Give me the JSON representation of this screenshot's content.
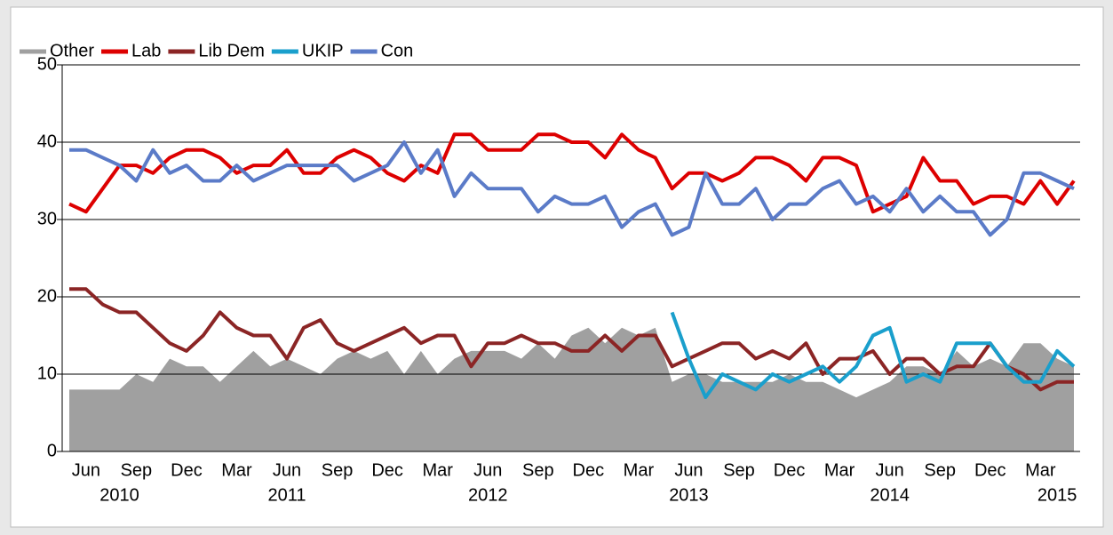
{
  "chart_data": {
    "type": "line",
    "categories": [
      null,
      "Jun",
      null,
      null,
      "Sep",
      null,
      null,
      "Dec",
      null,
      null,
      "Mar",
      null,
      null,
      "Jun",
      null,
      null,
      "Sep",
      null,
      null,
      "Dec",
      null,
      null,
      "Mar",
      null,
      null,
      "Jun",
      null,
      null,
      "Sep",
      null,
      null,
      "Dec",
      null,
      null,
      "Mar",
      null,
      null,
      "Jun",
      null,
      null,
      "Sep",
      null,
      null,
      "Dec",
      null,
      null,
      "Mar",
      null,
      null,
      "Jun",
      null,
      null,
      "Sep",
      null,
      null,
      "Dec",
      null,
      null,
      "Mar",
      null,
      null
    ],
    "years": [
      null,
      null,
      null,
      "2010",
      null,
      null,
      null,
      null,
      null,
      null,
      null,
      null,
      null,
      "2011",
      null,
      null,
      null,
      null,
      null,
      null,
      null,
      null,
      null,
      null,
      null,
      "2012",
      null,
      null,
      null,
      null,
      null,
      null,
      null,
      null,
      null,
      null,
      null,
      "2013",
      null,
      null,
      null,
      null,
      null,
      null,
      null,
      null,
      null,
      null,
      null,
      "2014",
      null,
      null,
      null,
      null,
      null,
      null,
      null,
      null,
      null,
      "2015",
      null,
      null
    ],
    "series": [
      {
        "name": "Other",
        "color": "#a0a0a0",
        "fill": "area",
        "values": [
          8,
          8,
          8,
          8,
          10,
          9,
          12,
          11,
          11,
          9,
          11,
          13,
          11,
          12,
          11,
          10,
          12,
          13,
          12,
          13,
          10,
          13,
          10,
          12,
          13,
          13,
          13,
          12,
          14,
          12,
          15,
          16,
          14,
          16,
          15,
          16,
          9,
          10,
          10,
          9,
          9,
          9,
          9,
          10,
          9,
          9,
          8,
          7,
          8,
          9,
          11,
          11,
          10,
          13,
          11,
          12,
          11,
          14,
          14,
          12,
          11
        ]
      },
      {
        "name": "Lab",
        "color": "#dd0000",
        "values": [
          32,
          31,
          34,
          37,
          37,
          36,
          38,
          39,
          39,
          38,
          36,
          37,
          37,
          39,
          36,
          36,
          38,
          39,
          38,
          36,
          35,
          37,
          36,
          41,
          41,
          39,
          39,
          39,
          41,
          41,
          40,
          40,
          38,
          41,
          39,
          38,
          34,
          36,
          36,
          35,
          36,
          38,
          38,
          37,
          35,
          38,
          38,
          37,
          31,
          32,
          33,
          38,
          35,
          35,
          32,
          33,
          33,
          32,
          35,
          32,
          35
        ]
      },
      {
        "name": "Lib Dem",
        "color": "#8b2525",
        "values": [
          21,
          21,
          19,
          18,
          18,
          16,
          14,
          13,
          15,
          18,
          16,
          15,
          15,
          12,
          16,
          17,
          14,
          13,
          14,
          15,
          16,
          14,
          15,
          15,
          11,
          14,
          14,
          15,
          14,
          14,
          13,
          13,
          15,
          13,
          15,
          15,
          11,
          12,
          13,
          14,
          14,
          12,
          13,
          12,
          14,
          10,
          12,
          12,
          13,
          10,
          12,
          12,
          10,
          11,
          11,
          14,
          11,
          10,
          8,
          9,
          9
        ]
      },
      {
        "name": "UKIP",
        "color": "#1a9fcc",
        "values": [
          null,
          null,
          null,
          null,
          null,
          null,
          null,
          null,
          null,
          null,
          null,
          null,
          null,
          null,
          null,
          null,
          null,
          null,
          null,
          null,
          null,
          null,
          null,
          null,
          null,
          null,
          null,
          null,
          null,
          null,
          null,
          null,
          null,
          null,
          null,
          null,
          18,
          12,
          7,
          10,
          9,
          8,
          10,
          9,
          10,
          11,
          9,
          11,
          15,
          16,
          9,
          10,
          9,
          14,
          14,
          14,
          11,
          9,
          9,
          13,
          11
        ]
      },
      {
        "name": "Con",
        "color": "#5b7bc8",
        "values": [
          39,
          39,
          38,
          37,
          35,
          39,
          36,
          37,
          35,
          35,
          37,
          35,
          36,
          37,
          37,
          37,
          37,
          35,
          36,
          37,
          40,
          36,
          39,
          33,
          36,
          34,
          34,
          34,
          31,
          33,
          32,
          32,
          33,
          29,
          31,
          32,
          28,
          29,
          36,
          32,
          32,
          34,
          30,
          32,
          32,
          34,
          35,
          32,
          33,
          31,
          34,
          31,
          33,
          31,
          31,
          28,
          30,
          36,
          36,
          35,
          34
        ]
      }
    ],
    "ylim": [
      0,
      50
    ],
    "yticks": [
      0,
      10,
      20,
      30,
      40,
      50
    ],
    "grid": true,
    "legend": "top-left"
  }
}
